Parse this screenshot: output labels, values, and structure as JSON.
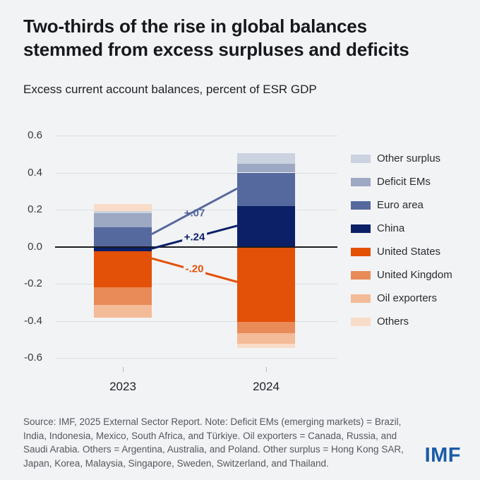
{
  "header": {
    "title": "Two-thirds of the rise in global balances stemmed from excess surpluses and deficits",
    "title_lines": [
      "Two-thirds of the rise in global balances",
      "stemmed from excess surpluses and deficits"
    ],
    "subtitle": "Excess current account balances, percent of ESR GDP"
  },
  "chart_data": {
    "type": "bar",
    "stacked": true,
    "title": "Excess current account balances, percent of ESR GDP",
    "categories": [
      "2023",
      "2024"
    ],
    "ylim": [
      -0.6,
      0.6
    ],
    "ytick_step": 0.2,
    "grid": true,
    "legend_position": "right",
    "series": [
      {
        "name": "Other surplus",
        "color": "#cbd2e0",
        "values": [
          0.012,
          0.057
        ]
      },
      {
        "name": "Deficit EMs",
        "color": "#9da9c3",
        "values": [
          0.075,
          0.046
        ]
      },
      {
        "name": "Euro area",
        "color": "#56699e",
        "values": [
          0.105,
          0.18
        ]
      },
      {
        "name": "China",
        "color": "#0b2066",
        "values": [
          -0.025,
          0.22
        ]
      },
      {
        "name": "United States",
        "color": "#e35108",
        "values": [
          -0.195,
          -0.405
        ]
      },
      {
        "name": "United Kingdom",
        "color": "#e88b58",
        "values": [
          -0.095,
          -0.063
        ]
      },
      {
        "name": "Oil exporters",
        "color": "#f3bb97",
        "values": [
          -0.068,
          -0.057
        ]
      },
      {
        "name": "Others",
        "color": "#f8dcc8",
        "values": [
          0.038,
          -0.023
        ]
      }
    ],
    "stack_order": [
      {
        "pos": [
          "Euro area",
          "Deficit EMs",
          "Other surplus",
          "Others"
        ],
        "neg": [
          "China",
          "United States",
          "United Kingdom",
          "Oil exporters"
        ]
      },
      {
        "pos": [
          "China",
          "Euro area",
          "Deficit EMs",
          "Other surplus"
        ],
        "neg": [
          "United States",
          "United Kingdom",
          "Oil exporters",
          "Others"
        ]
      }
    ],
    "annotations": [
      {
        "label": "+.07",
        "series": "Euro area",
        "color": "#56699e",
        "v1": 0.068,
        "v2": 0.314,
        "label_v": 0.181,
        "label_bg": false
      },
      {
        "label": "+.24",
        "series": "China",
        "color": "#0b2066",
        "v1": -0.01,
        "v2": 0.113,
        "label_v": 0.052,
        "label_bg": true
      },
      {
        "label": "-.20",
        "series": "United States",
        "color": "#e35108",
        "v1": -0.063,
        "v2": -0.19,
        "label_v": -0.12,
        "label_bg": true
      }
    ]
  },
  "footer": {
    "source_note": "Source: IMF, 2025 External Sector Report. Note: Deficit EMs (emerging markets) = Brazil, India, Indonesia, Mexico, South Africa, and Türkiye. Oil exporters = Canada, Russia, and Saudi Arabia. Others = Argentina, Australia, and Poland. Other surplus = Hong Kong SAR, Japan, Korea, Malaysia, Singapore, Sweden, Switzerland, and Thailand.",
    "logo": "IMF"
  }
}
